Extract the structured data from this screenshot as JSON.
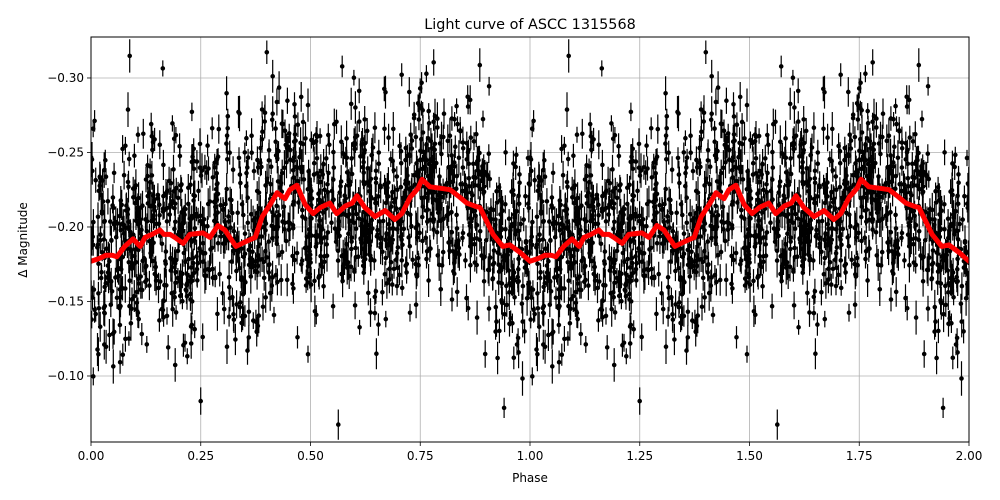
{
  "chart_data": {
    "type": "scatter",
    "title": "Light curve of ASCC 1315568",
    "xlabel": "Phase",
    "ylabel": "Δ Magnitude",
    "xlim": [
      0.0,
      2.0
    ],
    "ylim": [
      -0.0557,
      -0.3275
    ],
    "y_inverted": true,
    "grid": true,
    "x_ticks": [
      0.0,
      0.25,
      0.5,
      0.75,
      1.0,
      1.25,
      1.5,
      1.75,
      2.0
    ],
    "x_tick_labels": [
      "0.00",
      "0.25",
      "0.50",
      "0.75",
      "1.00",
      "1.25",
      "1.50",
      "1.75",
      "2.00"
    ],
    "y_ticks": [
      -0.3,
      -0.25,
      -0.2,
      -0.15,
      -0.1
    ],
    "y_tick_labels": [
      "−0.30",
      "−0.25",
      "−0.20",
      "−0.15",
      "−0.10"
    ],
    "series": [
      {
        "name": "observations",
        "kind": "errorbar-scatter",
        "color": "#000000",
        "description": "dense phase-folded photometry points with vertical error bars, scattered around the binned curve, duplicated over phase 1-2",
        "approx_scatter_sigma": 0.045,
        "approx_errorbar_halfwidth": 0.008,
        "approx_point_count_per_cycle": 1500
      },
      {
        "name": "binned mean",
        "kind": "line",
        "color": "#ff0000",
        "line_width": 5,
        "x": [
          0.0,
          0.02,
          0.034,
          0.048,
          0.059,
          0.077,
          0.096,
          0.105,
          0.112,
          0.123,
          0.139,
          0.157,
          0.166,
          0.18,
          0.191,
          0.21,
          0.225,
          0.255,
          0.271,
          0.289,
          0.305,
          0.33,
          0.351,
          0.374,
          0.39,
          0.408,
          0.424,
          0.442,
          0.453,
          0.469,
          0.488,
          0.506,
          0.522,
          0.544,
          0.56,
          0.579,
          0.595,
          0.606,
          0.624,
          0.647,
          0.67,
          0.692,
          0.708,
          0.727,
          0.745,
          0.754,
          0.772,
          0.795,
          0.818,
          0.84,
          0.856,
          0.874,
          0.886,
          0.916,
          0.938,
          0.954,
          0.977,
          1.0
        ],
        "y": [
          -0.177,
          -0.179,
          -0.181,
          -0.181,
          -0.18,
          -0.187,
          -0.192,
          -0.189,
          -0.187,
          -0.193,
          -0.195,
          -0.198,
          -0.195,
          -0.195,
          -0.193,
          -0.189,
          -0.195,
          -0.196,
          -0.193,
          -0.201,
          -0.198,
          -0.187,
          -0.19,
          -0.193,
          -0.207,
          -0.215,
          -0.223,
          -0.219,
          -0.225,
          -0.228,
          -0.215,
          -0.209,
          -0.213,
          -0.216,
          -0.209,
          -0.214,
          -0.216,
          -0.221,
          -0.213,
          -0.207,
          -0.211,
          -0.205,
          -0.209,
          -0.22,
          -0.226,
          -0.232,
          -0.227,
          -0.226,
          -0.225,
          -0.22,
          -0.216,
          -0.214,
          -0.213,
          -0.195,
          -0.187,
          -0.188,
          -0.183,
          -0.177
        ],
        "repeats_with_period": 1.0
      }
    ]
  }
}
